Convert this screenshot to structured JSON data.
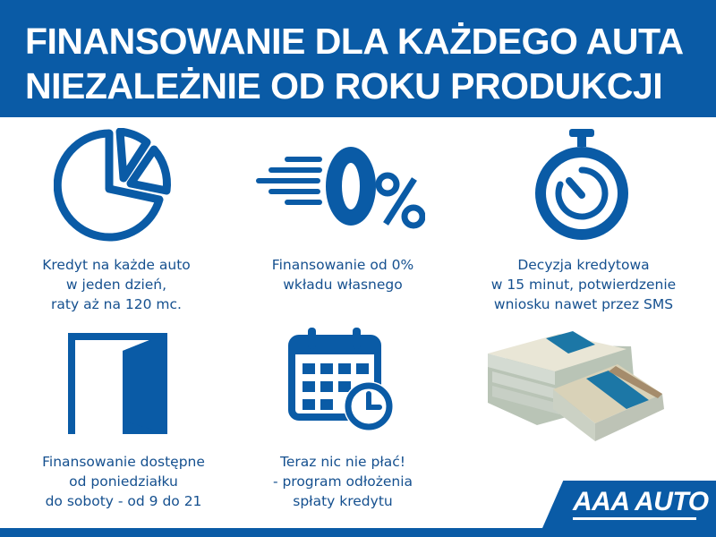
{
  "header": {
    "line1": "FINANSOWANIE DLA KAŻDEGO AUTA",
    "line2": "NIEZALEŻNIE OD ROKU PRODUKCJI"
  },
  "features": [
    {
      "icon": "pie-chart-icon",
      "lines": [
        "Kredyt na każde auto",
        "w jeden dzień,",
        "raty aż na 120 mc."
      ]
    },
    {
      "icon": "zero-percent-icon",
      "lines": [
        "Finansowanie od 0%",
        "wkładu własnego"
      ]
    },
    {
      "icon": "stopwatch-icon",
      "lines": [
        "Decyzja kredytowa",
        "w 15 minut, potwierdzenie",
        "wniosku nawet przez SMS"
      ]
    },
    {
      "icon": "door-icon",
      "lines": [
        "Finansowanie dostępne",
        "od poniedziałku",
        "do soboty - od 9 do 21"
      ]
    },
    {
      "icon": "calendar-clock-icon",
      "lines": [
        "Teraz nic nie płać!",
        "- program odłożenia",
        "spłaty kredytu"
      ]
    }
  ],
  "zero_percent_icon_text": "0%",
  "logo": "AAA AUTO",
  "colors": {
    "brand_blue": "#0a5ba6",
    "text_blue": "#15508f"
  }
}
